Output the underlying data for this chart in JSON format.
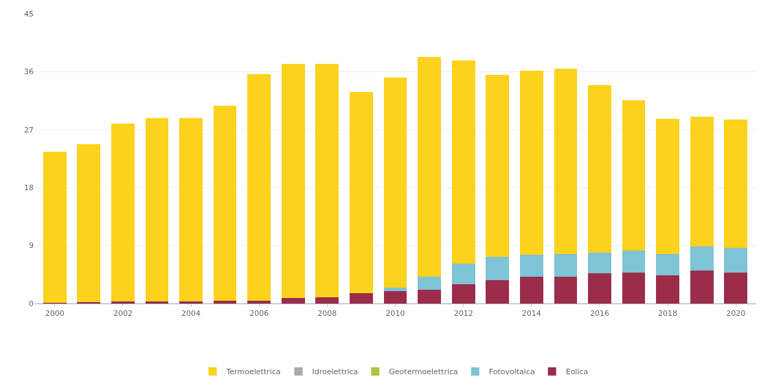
{
  "chart_data": {
    "type": "bar",
    "stacked": true,
    "x": [
      2000,
      2001,
      2002,
      2003,
      2004,
      2005,
      2006,
      2007,
      2008,
      2009,
      2010,
      2011,
      2012,
      2013,
      2014,
      2015,
      2016,
      2017,
      2018,
      2019,
      2020
    ],
    "xlim": [
      1999.4,
      2020.6
    ],
    "xticks": [
      2000,
      2002,
      2004,
      2006,
      2008,
      2010,
      2012,
      2014,
      2016,
      2018,
      2020
    ],
    "ylim": [
      0,
      45
    ],
    "yticks": [
      0,
      9,
      18,
      27,
      36,
      45
    ],
    "grid": "y",
    "legend": "bottom",
    "series": [
      {
        "name": "Eolica",
        "color": "#9b2c4a",
        "values": [
          0.1,
          0.2,
          0.3,
          0.3,
          0.3,
          0.4,
          0.4,
          0.9,
          1.0,
          1.6,
          1.9,
          2.1,
          3.0,
          3.6,
          4.2,
          4.2,
          4.7,
          4.8,
          4.4,
          5.1,
          4.8
        ]
      },
      {
        "name": "Fotovoltaica",
        "color": "#7ec3d6",
        "values": [
          0,
          0,
          0,
          0,
          0,
          0,
          0,
          0,
          0,
          0,
          0.5,
          2.1,
          3.2,
          3.7,
          3.4,
          3.5,
          3.2,
          3.4,
          3.3,
          3.7,
          3.8
        ]
      },
      {
        "name": "Geotermoelettrica",
        "color": "#a8c63c",
        "values": [
          0,
          0,
          0,
          0,
          0,
          0,
          0,
          0,
          0,
          0,
          0,
          0,
          0,
          0,
          0,
          0,
          0,
          0,
          0,
          0,
          0
        ]
      },
      {
        "name": "Idroelettrica",
        "color": "#a9a9a9",
        "values": [
          0,
          0,
          0,
          0,
          0,
          0,
          0,
          0,
          0,
          0,
          0,
          0,
          0,
          0,
          0,
          0,
          0,
          0,
          0,
          0,
          0
        ]
      },
      {
        "name": "Termoelettrica",
        "color": "#fcd21c",
        "values": [
          23.5,
          24.5,
          27.6,
          28.5,
          28.5,
          30.3,
          35.2,
          36.3,
          36.2,
          31.2,
          32.7,
          34.1,
          31.6,
          28.2,
          28.6,
          28.8,
          26.0,
          23.4,
          21.0,
          20.2,
          20.0
        ]
      }
    ]
  }
}
